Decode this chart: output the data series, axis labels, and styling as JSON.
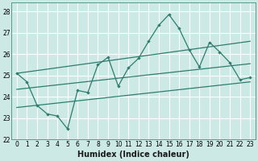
{
  "xlabel": "Humidex (Indice chaleur)",
  "bg_color": "#cce9e5",
  "grid_color": "#ffffff",
  "line_color": "#2e7d6e",
  "xlim": [
    -0.5,
    23.5
  ],
  "ylim": [
    22,
    28.4
  ],
  "xticks": [
    0,
    1,
    2,
    3,
    4,
    5,
    6,
    7,
    8,
    9,
    10,
    11,
    12,
    13,
    14,
    15,
    16,
    17,
    18,
    19,
    20,
    21,
    22,
    23
  ],
  "yticks": [
    22,
    23,
    24,
    25,
    26,
    27,
    28
  ],
  "main_x": [
    0,
    1,
    2,
    3,
    4,
    5,
    6,
    7,
    8,
    9,
    10,
    11,
    12,
    13,
    14,
    15,
    16,
    17,
    18,
    19,
    20,
    21,
    22,
    23
  ],
  "main_y": [
    25.1,
    24.7,
    23.6,
    23.2,
    23.1,
    22.5,
    24.3,
    24.2,
    25.5,
    25.85,
    24.5,
    25.35,
    25.8,
    26.6,
    27.35,
    27.85,
    27.2,
    26.2,
    25.4,
    26.55,
    26.1,
    25.6,
    24.8,
    24.9
  ],
  "upper_line_x": [
    0,
    23
  ],
  "upper_line_y": [
    25.1,
    26.6
  ],
  "middle_line_x": [
    0,
    23
  ],
  "middle_line_y": [
    24.35,
    25.55
  ],
  "lower_line_x": [
    0,
    23
  ],
  "lower_line_y": [
    23.5,
    24.7
  ],
  "spine_color": "#5a9a8a",
  "tick_fontsize": 5.5,
  "xlabel_fontsize": 7
}
